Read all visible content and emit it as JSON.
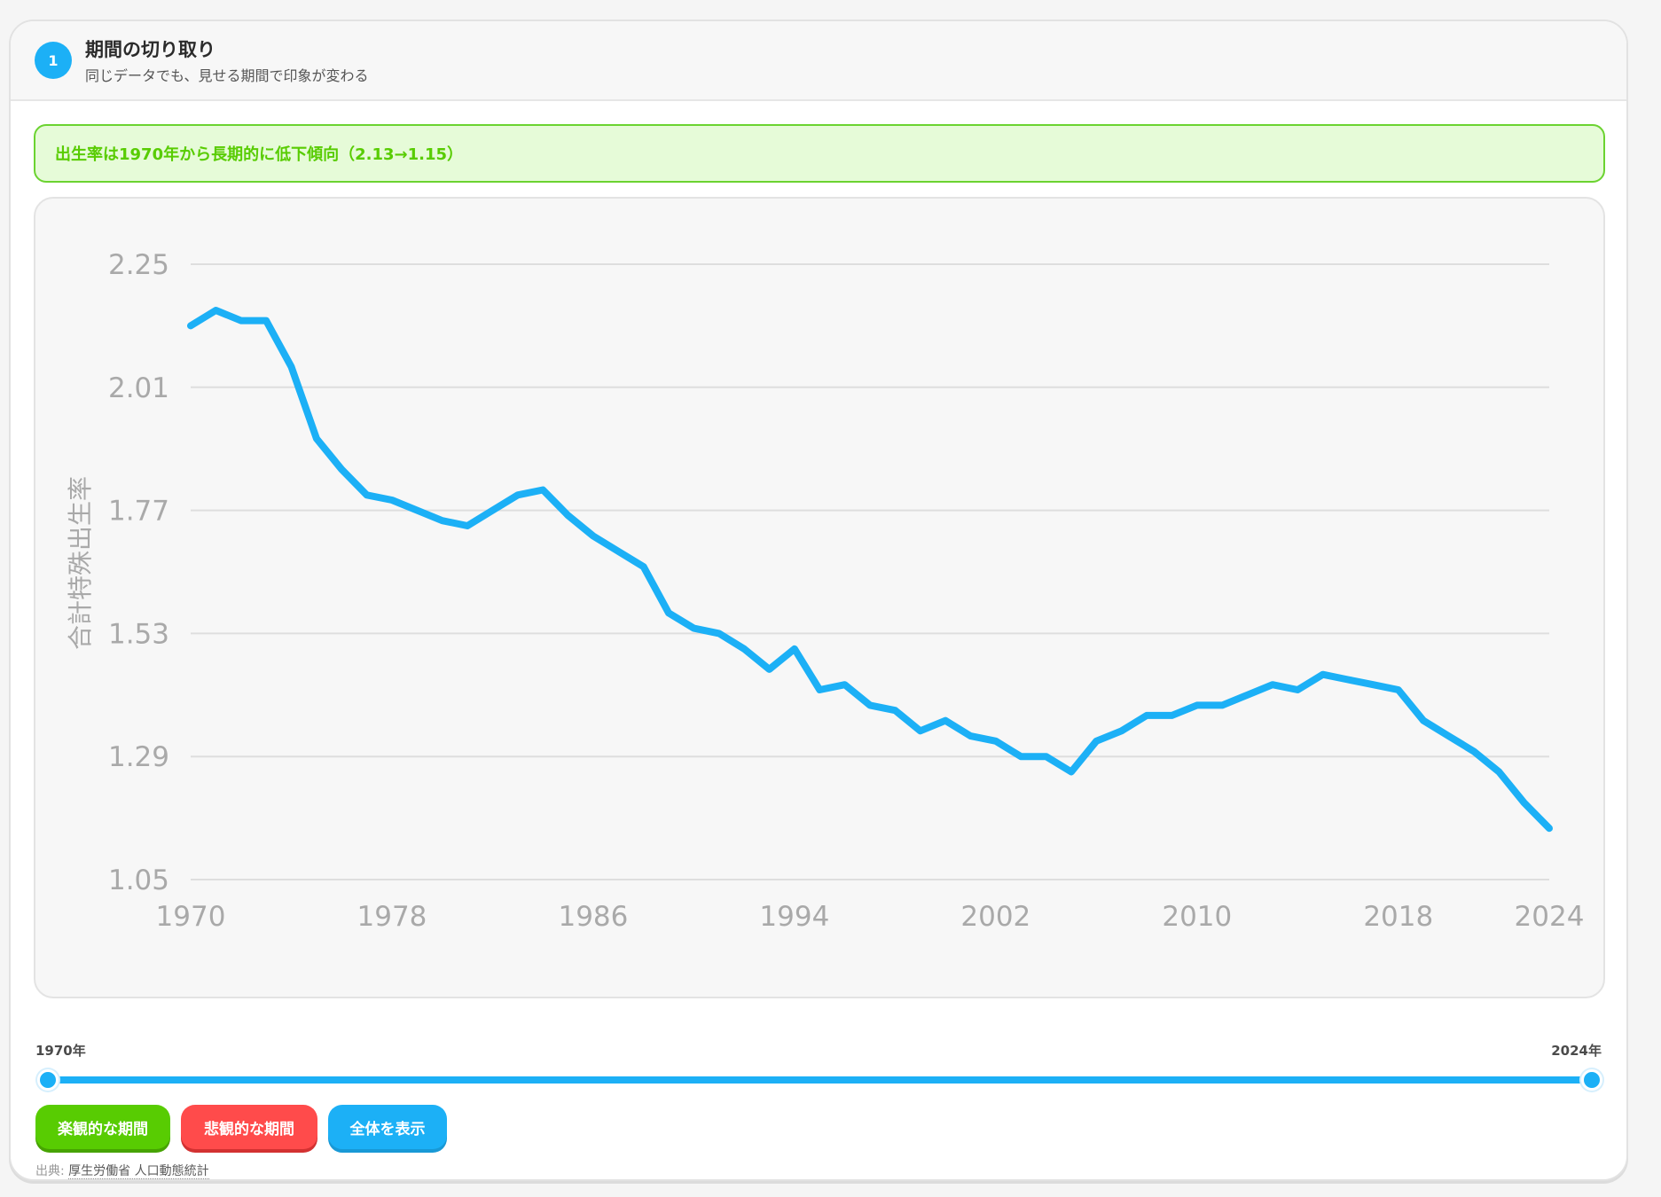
{
  "header": {
    "step_number": "1",
    "title": "期間の切り取り",
    "subtitle": "同じデータでも、見せる期間で印象が変わる"
  },
  "insight": {
    "text": "出生率は1970年から長期的に低下傾向（2.13→1.15）"
  },
  "chart_data": {
    "type": "line",
    "ylabel": "合計特殊出生率",
    "xlabel": "",
    "title": "",
    "x": [
      1970,
      1971,
      1972,
      1973,
      1974,
      1975,
      1976,
      1977,
      1978,
      1979,
      1980,
      1981,
      1982,
      1983,
      1984,
      1985,
      1986,
      1987,
      1988,
      1989,
      1990,
      1991,
      1992,
      1993,
      1994,
      1995,
      1996,
      1997,
      1998,
      1999,
      2000,
      2001,
      2002,
      2003,
      2004,
      2005,
      2006,
      2007,
      2008,
      2009,
      2010,
      2011,
      2012,
      2013,
      2014,
      2015,
      2016,
      2017,
      2018,
      2019,
      2020,
      2021,
      2022,
      2023,
      2024
    ],
    "values": [
      2.13,
      2.16,
      2.14,
      2.14,
      2.05,
      1.91,
      1.85,
      1.8,
      1.79,
      1.77,
      1.75,
      1.74,
      1.77,
      1.8,
      1.81,
      1.76,
      1.72,
      1.69,
      1.66,
      1.57,
      1.54,
      1.53,
      1.5,
      1.46,
      1.5,
      1.42,
      1.43,
      1.39,
      1.38,
      1.34,
      1.36,
      1.33,
      1.32,
      1.29,
      1.29,
      1.26,
      1.32,
      1.34,
      1.37,
      1.37,
      1.39,
      1.39,
      1.41,
      1.43,
      1.42,
      1.45,
      1.44,
      1.43,
      1.42,
      1.36,
      1.33,
      1.3,
      1.26,
      1.2,
      1.15
    ],
    "ylim": [
      1.05,
      2.25
    ],
    "xlim": [
      1970,
      2024
    ],
    "y_ticks": [
      "2.25",
      "2.01",
      "1.77",
      "1.53",
      "1.29",
      "1.05"
    ],
    "x_ticks": [
      "1970",
      "1978",
      "1986",
      "1994",
      "2002",
      "2010",
      "2018",
      "2024"
    ],
    "grid": true,
    "line_color": "#1cb0f6"
  },
  "range": {
    "start_label": "1970年",
    "end_label": "2024年",
    "start_year": 1970,
    "end_year": 2024
  },
  "buttons": {
    "optimistic": "楽観的な期間",
    "pessimistic": "悲観的な期間",
    "show_all": "全体を表示"
  },
  "source": {
    "prefix": "出典: ",
    "link_text": "厚生労働省 人口動態統計"
  },
  "colors": {
    "primary_blue": "#1cb0f6",
    "green": "#58cc02",
    "red": "#ff4b4b",
    "banner_bg": "#e6fbd8"
  }
}
